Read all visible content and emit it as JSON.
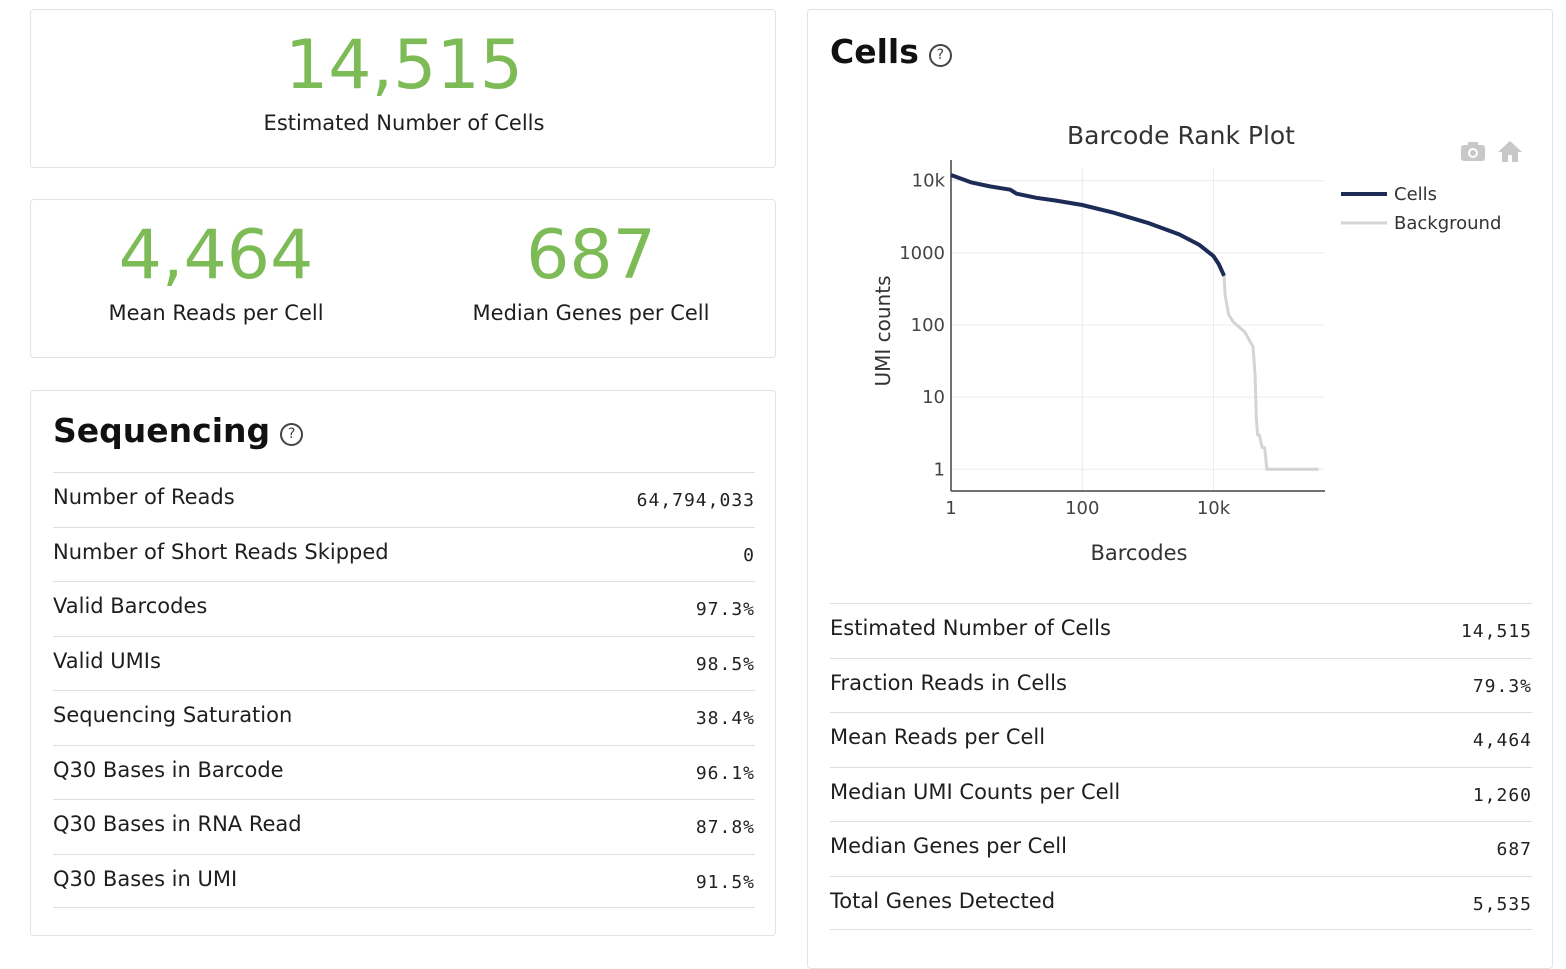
{
  "summary": {
    "estimated_cells": {
      "value": "14,515",
      "label": "Estimated Number of Cells"
    },
    "mean_reads": {
      "value": "4,464",
      "label": "Mean Reads per Cell"
    },
    "median_genes": {
      "value": "687",
      "label": "Median Genes per Cell"
    }
  },
  "sequencing": {
    "title": "Sequencing",
    "help_icon": "?",
    "rows": [
      {
        "name": "Number of Reads",
        "value": "64,794,033"
      },
      {
        "name": "Number of Short Reads Skipped",
        "value": "0"
      },
      {
        "name": "Valid Barcodes",
        "value": "97.3%"
      },
      {
        "name": "Valid UMIs",
        "value": "98.5%"
      },
      {
        "name": "Sequencing Saturation",
        "value": "38.4%"
      },
      {
        "name": "Q30 Bases in Barcode",
        "value": "96.1%"
      },
      {
        "name": "Q30 Bases in RNA Read",
        "value": "87.8%"
      },
      {
        "name": "Q30 Bases in UMI",
        "value": "91.5%"
      }
    ]
  },
  "cells": {
    "title": "Cells",
    "help_icon": "?",
    "toolbar_icons": [
      "camera-icon",
      "home-icon"
    ],
    "rows": [
      {
        "name": "Estimated Number of Cells",
        "value": "14,515"
      },
      {
        "name": "Fraction Reads in Cells",
        "value": "79.3%"
      },
      {
        "name": "Mean Reads per Cell",
        "value": "4,464"
      },
      {
        "name": "Median UMI Counts per Cell",
        "value": "1,260"
      },
      {
        "name": "Median Genes per Cell",
        "value": "687"
      },
      {
        "name": "Total Genes Detected",
        "value": "5,535"
      }
    ]
  },
  "chart_data": {
    "type": "line",
    "title": "Barcode Rank Plot",
    "xlabel": "Barcodes",
    "ylabel": "UMI counts",
    "xscale": "log",
    "yscale": "log",
    "xlim": [
      1,
      500000
    ],
    "ylim": [
      0.5,
      15000
    ],
    "xticks": [
      {
        "v": 1,
        "label": "1"
      },
      {
        "v": 100,
        "label": "100"
      },
      {
        "v": 10000,
        "label": "10k"
      }
    ],
    "yticks": [
      {
        "v": 1,
        "label": "1"
      },
      {
        "v": 10,
        "label": "10"
      },
      {
        "v": 100,
        "label": "100"
      },
      {
        "v": 1000,
        "label": "1000"
      },
      {
        "v": 10000,
        "label": "10k"
      }
    ],
    "legend_position": "top-right",
    "series": [
      {
        "name": "Cells",
        "color": "#1c2c56",
        "points": [
          [
            1,
            12000
          ],
          [
            2,
            9500
          ],
          [
            4,
            8300
          ],
          [
            8,
            7500
          ],
          [
            10,
            6600
          ],
          [
            20,
            5800
          ],
          [
            40,
            5300
          ],
          [
            100,
            4600
          ],
          [
            300,
            3600
          ],
          [
            1000,
            2600
          ],
          [
            3000,
            1800
          ],
          [
            6000,
            1300
          ],
          [
            10000,
            900
          ],
          [
            12000,
            700
          ],
          [
            14515,
            480
          ]
        ]
      },
      {
        "name": "Background",
        "color": "#d4d4d4",
        "points": [
          [
            14515,
            480
          ],
          [
            15000,
            260
          ],
          [
            17000,
            140
          ],
          [
            20000,
            110
          ],
          [
            30000,
            80
          ],
          [
            40000,
            50
          ],
          [
            43000,
            20
          ],
          [
            45000,
            5
          ],
          [
            47000,
            3
          ],
          [
            50000,
            3
          ],
          [
            55000,
            2
          ],
          [
            60000,
            2
          ],
          [
            65000,
            1
          ],
          [
            400000,
            1
          ]
        ]
      }
    ]
  }
}
